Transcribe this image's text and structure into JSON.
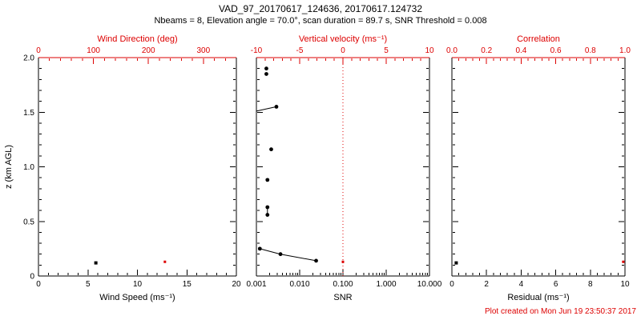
{
  "chart_data": {
    "type": "scatter",
    "title": "VAD_97_20170617_124636, 20170617.124732",
    "subtitle": "Nbeams = 8, Elevation angle = 70.0°, scan duration = 89.7 s, SNR Threshold = 0.008",
    "footer": "Plot created on Mon Jun 19 23:50:37 2017",
    "ylabel": "z (km AGL)",
    "ylim": [
      0,
      2
    ],
    "yticks": [
      0,
      0.5,
      1,
      1.5,
      2
    ],
    "ytick_labels": [
      "0",
      "0.5",
      "1.0",
      "1.5",
      "2.0"
    ],
    "colors": {
      "primary": "#000000",
      "secondary": "#dd0000"
    },
    "legend": "black = lidar-axis quantity (bottom scale), red = secondary quantity (top scale)",
    "panels": [
      {
        "name": "wind",
        "black_marker": "square",
        "bottom_axis": {
          "label": "Wind Speed (ms⁻¹)",
          "scale": "linear",
          "lim": [
            0,
            20
          ],
          "ticks": [
            0,
            5,
            10,
            15,
            20
          ],
          "tick_labels": [
            "0",
            "5",
            "10",
            "15",
            "20"
          ]
        },
        "top_axis": {
          "label": "Wind Direction (deg)",
          "scale": "linear",
          "lim": [
            0,
            360
          ],
          "ticks": [
            0,
            100,
            200,
            300
          ],
          "tick_labels": [
            "0",
            "100",
            "200",
            "300"
          ]
        },
        "black_points": [
          {
            "x": 5.8,
            "z": 0.12
          }
        ],
        "red_points": [
          {
            "x": 230,
            "z": 0.13
          }
        ],
        "black_lines": [],
        "ref_line_x": null
      },
      {
        "name": "snr",
        "black_marker": "circle",
        "bottom_axis": {
          "label": "SNR",
          "scale": "log",
          "lim": [
            0.001,
            10
          ],
          "ticks": [
            0.001,
            0.01,
            0.1,
            1,
            10
          ],
          "tick_labels": [
            "0.001",
            "0.010",
            "0.100",
            "1.000",
            "10.000"
          ]
        },
        "top_axis": {
          "label": "Vertical velocity (ms⁻¹)",
          "scale": "linear",
          "lim": [
            -10,
            10
          ],
          "ticks": [
            -10,
            -5,
            0,
            5,
            10
          ],
          "tick_labels": [
            "-10",
            "-5",
            "0",
            "5",
            "10"
          ]
        },
        "black_points": [
          {
            "x": 0.0017,
            "z": 1.9
          },
          {
            "x": 0.0017,
            "z": 1.85
          },
          {
            "x": 0.0029,
            "z": 1.55
          },
          {
            "x": 0.0022,
            "z": 1.16
          },
          {
            "x": 0.0018,
            "z": 0.88
          },
          {
            "x": 0.0018,
            "z": 0.63
          },
          {
            "x": 0.0018,
            "z": 0.56
          },
          {
            "x": 0.0012,
            "z": 0.25
          },
          {
            "x": 0.0036,
            "z": 0.2
          },
          {
            "x": 0.024,
            "z": 0.14
          }
        ],
        "black_lines": [
          [
            {
              "x": 0.001,
              "z": 1.51
            },
            {
              "x": 0.0029,
              "z": 1.55
            }
          ],
          [
            {
              "x": 0.0018,
              "z": 0.63
            },
            {
              "x": 0.0018,
              "z": 0.56
            }
          ],
          [
            {
              "x": 0.0012,
              "z": 0.25
            },
            {
              "x": 0.0036,
              "z": 0.2
            },
            {
              "x": 0.024,
              "z": 0.14
            }
          ]
        ],
        "red_points": [
          {
            "x": 0,
            "z": 0.13
          }
        ],
        "ref_line_x": 0
      },
      {
        "name": "residual",
        "black_marker": "square",
        "bottom_axis": {
          "label": "Residual (ms⁻¹)",
          "scale": "linear",
          "lim": [
            0,
            10
          ],
          "ticks": [
            0,
            2,
            4,
            6,
            8,
            10
          ],
          "tick_labels": [
            "0",
            "2",
            "4",
            "6",
            "8",
            "10"
          ]
        },
        "top_axis": {
          "label": "Correlation",
          "scale": "linear",
          "lim": [
            0,
            1
          ],
          "ticks": [
            0,
            0.2,
            0.4,
            0.6,
            0.8,
            1
          ],
          "tick_labels": [
            "0.0",
            "0.2",
            "0.4",
            "0.6",
            "0.8",
            "1.0"
          ]
        },
        "black_points": [
          {
            "x": 0.25,
            "z": 0.12
          }
        ],
        "red_points": [
          {
            "x": 0.99,
            "z": 0.13
          }
        ],
        "black_lines": [],
        "ref_line_x": null
      }
    ]
  }
}
